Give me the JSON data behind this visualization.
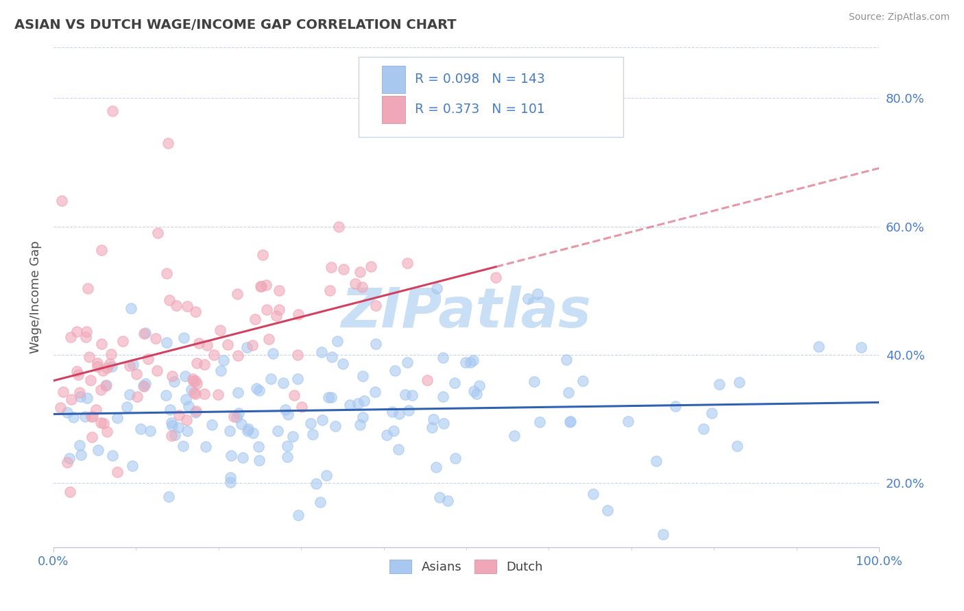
{
  "title": "ASIAN VS DUTCH WAGE/INCOME GAP CORRELATION CHART",
  "source": "Source: ZipAtlas.com",
  "ylabel": "Wage/Income Gap",
  "y_tick_values": [
    0.2,
    0.4,
    0.6,
    0.8
  ],
  "x_range": [
    0.0,
    1.0
  ],
  "y_range": [
    0.1,
    0.88
  ],
  "asian_color": "#a8c8f0",
  "dutch_color": "#f0a8b8",
  "asian_line_color": "#3060b0",
  "dutch_line_color": "#d04060",
  "asian_R": 0.098,
  "asian_N": 143,
  "dutch_R": 0.373,
  "dutch_N": 101,
  "watermark": "ZIPatlas",
  "watermark_color": "#c8dff5",
  "background_color": "#ffffff",
  "grid_color": "#c8d4e8",
  "title_color": "#404040",
  "axis_label_color": "#4a7cc7",
  "legend_text_color": "#4a7cc7",
  "source_color": "#909090"
}
